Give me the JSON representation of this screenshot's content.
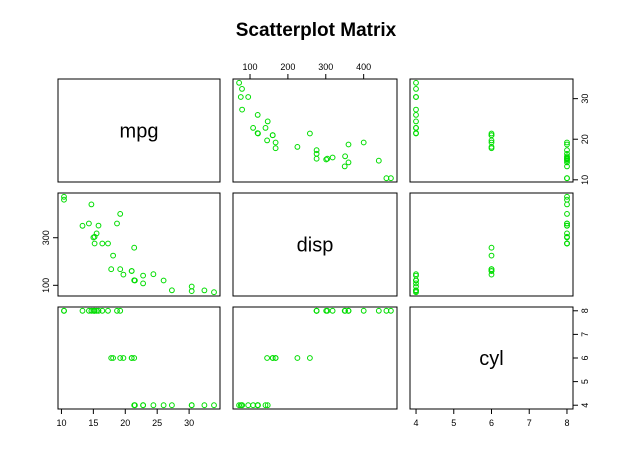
{
  "chart_data": {
    "type": "scatter",
    "title": "Scatterplot Matrix",
    "point_color": "#00dd00",
    "variables": [
      {
        "name": "mpg",
        "range": [
          10.4,
          33.9
        ],
        "ticks": [
          10,
          15,
          20,
          25,
          30
        ]
      },
      {
        "name": "disp",
        "range": [
          71.1,
          472
        ],
        "ticks": [
          100,
          200,
          300,
          400
        ]
      },
      {
        "name": "cyl",
        "range": [
          4,
          8
        ],
        "ticks": [
          4,
          5,
          6,
          7,
          8
        ]
      }
    ],
    "axes": {
      "top": [
        {
          "column": "disp",
          "ticks": [
            "100",
            "200",
            "300",
            "400"
          ]
        }
      ],
      "right": [
        {
          "row": "mpg",
          "ticks": [
            "10",
            "20",
            "30"
          ]
        },
        {
          "row": "cyl",
          "ticks": [
            "4",
            "5",
            "6",
            "7",
            "8"
          ]
        }
      ],
      "left": [
        {
          "row": "disp",
          "ticks": [
            "100",
            "300"
          ]
        }
      ],
      "bottom": [
        {
          "column": "mpg",
          "ticks": [
            "10",
            "15",
            "20",
            "25",
            "30"
          ]
        },
        {
          "column": "cyl",
          "ticks": [
            "4",
            "5",
            "6",
            "7",
            "8"
          ]
        }
      ]
    },
    "series": {
      "mpg": [
        21,
        21,
        22.8,
        21.4,
        18.7,
        18.1,
        14.3,
        24.4,
        22.8,
        19.2,
        17.8,
        16.4,
        17.3,
        15.2,
        10.4,
        10.4,
        14.7,
        32.4,
        30.4,
        33.9,
        21.5,
        15.5,
        15.2,
        13.3,
        19.2,
        27.3,
        26,
        30.4,
        15.8,
        19.7,
        15,
        21.4
      ],
      "disp": [
        160,
        160,
        108,
        258,
        360,
        225,
        360,
        146.7,
        140.8,
        167.6,
        167.6,
        275.8,
        275.8,
        275.8,
        472,
        460,
        440,
        78.7,
        75.7,
        71.1,
        120.1,
        318,
        304,
        350,
        400,
        79,
        120.3,
        95.1,
        351,
        145,
        301,
        121
      ],
      "cyl": [
        6,
        6,
        4,
        6,
        8,
        6,
        8,
        4,
        4,
        6,
        6,
        8,
        8,
        8,
        8,
        8,
        8,
        4,
        4,
        4,
        4,
        8,
        8,
        8,
        8,
        4,
        4,
        4,
        8,
        6,
        8,
        4
      ]
    }
  }
}
